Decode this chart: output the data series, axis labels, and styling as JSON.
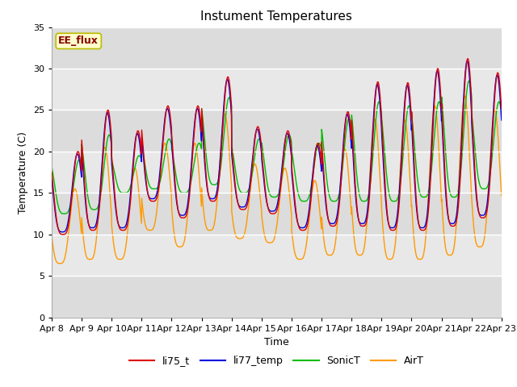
{
  "title": "Instument Temperatures",
  "xlabel": "Time",
  "ylabel": "Temperature (C)",
  "ylim": [
    0,
    35
  ],
  "x_tick_labels": [
    "Apr 8",
    "Apr 9",
    "Apr 10",
    "Apr 11",
    "Apr 12",
    "Apr 13",
    "Apr 14",
    "Apr 15",
    "Apr 16",
    "Apr 17",
    "Apr 18",
    "Apr 19",
    "Apr 20",
    "Apr 21",
    "Apr 22",
    "Apr 23"
  ],
  "series_colors": {
    "li75_t": "#dd0000",
    "li77_temp": "#0000dd",
    "SonicT": "#00bb00",
    "AirT": "#ff9900"
  },
  "annotation_text": "EE_flux",
  "annotation_color": "#880000",
  "annotation_bg": "#ffffcc",
  "annotation_border": "#bbbb00",
  "fig_bg_color": "#ffffff",
  "plot_bg_color": "#e8e8e8",
  "band_color_light": "#ebebeb",
  "band_color_dark": "#d8d8d8",
  "grid_color": "#ffffff",
  "title_fontsize": 11,
  "axis_label_fontsize": 9,
  "tick_fontsize": 8,
  "legend_fontsize": 9,
  "line_width": 1.0,
  "days": 15
}
